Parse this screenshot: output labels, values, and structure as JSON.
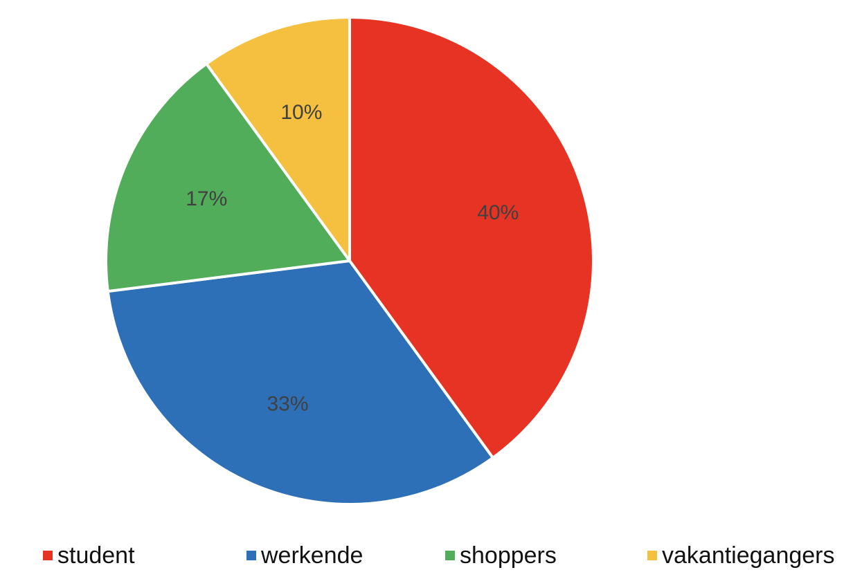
{
  "chart_data": {
    "type": "pie",
    "categories": [
      "student",
      "werkende",
      "shoppers",
      "vakantiegangers"
    ],
    "values": [
      40,
      33,
      17,
      10
    ],
    "labels": [
      "40%",
      "33%",
      "17%",
      "10%"
    ],
    "colors": [
      "#e63323",
      "#2e70b8",
      "#52ad5a",
      "#f5c040"
    ],
    "title": "",
    "legend_position": "bottom",
    "start_angle": "12 o'clock",
    "direction": "clockwise"
  }
}
